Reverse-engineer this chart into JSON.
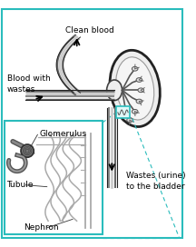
{
  "bg_color": "#ffffff",
  "border_color": "#2abcbc",
  "text_color": "#000000",
  "dashed_line_color": "#2abcbc",
  "labels": {
    "clean_blood": "Clean blood",
    "blood_wastes": "Blood with\nwastes",
    "wastes_urine": "Wastes (urine)\nto the bladder",
    "glomerulus": "Glomerulus",
    "tubule": "Tubule",
    "nephron": "Nephron"
  },
  "font_size": 6.5
}
